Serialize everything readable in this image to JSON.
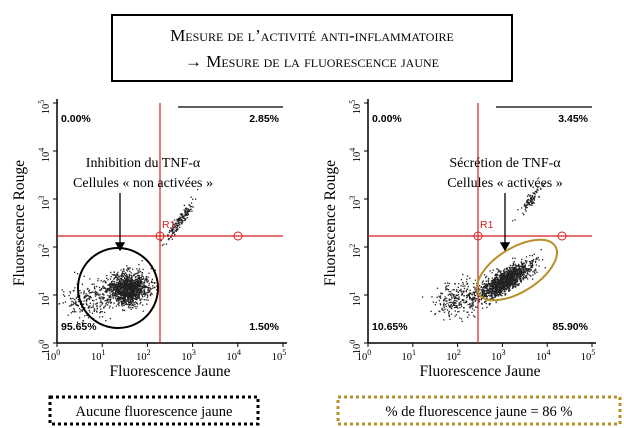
{
  "header": {
    "line1": "Mesure de l’activité anti-inflammatoire",
    "line2": "→ Mesure de la fluorescence jaune"
  },
  "panels": [
    {
      "x_label": "Fluorescence Jaune",
      "y_label": "Fluorescence Rouge",
      "ticks": [
        {
          "base": "10",
          "exp": "0"
        },
        {
          "base": "10",
          "exp": "1"
        },
        {
          "base": "10",
          "exp": "2"
        },
        {
          "base": "10",
          "exp": "3"
        },
        {
          "base": "10",
          "exp": "4"
        },
        {
          "base": "10",
          "exp": "5"
        }
      ],
      "quadrants": {
        "top_left": "0.00%",
        "top_right": "2.85%",
        "bottom_left": "95.65%",
        "bottom_right": "1.50%"
      },
      "gate": "R1",
      "annotation": [
        "Inhibition du TNF-α",
        "Cellules « non activées »"
      ]
    },
    {
      "x_label": "Fluorescence Jaune",
      "y_label": "Fluorescence Rouge",
      "ticks": [
        {
          "base": "10",
          "exp": "0"
        },
        {
          "base": "10",
          "exp": "1"
        },
        {
          "base": "10",
          "exp": "2"
        },
        {
          "base": "10",
          "exp": "3"
        },
        {
          "base": "10",
          "exp": "4"
        },
        {
          "base": "10",
          "exp": "5"
        }
      ],
      "quadrants": {
        "top_left": "0.00%",
        "top_right": "3.45%",
        "bottom_left": "10.65%",
        "bottom_right": "85.90%"
      },
      "gate": "R1",
      "annotation": [
        "Sécrétion de TNF-α",
        "Cellules « activées »"
      ]
    }
  ],
  "footer": {
    "left": "Aucune fluorescence jaune",
    "right": "% de fluorescence jaune = 86 %"
  }
}
